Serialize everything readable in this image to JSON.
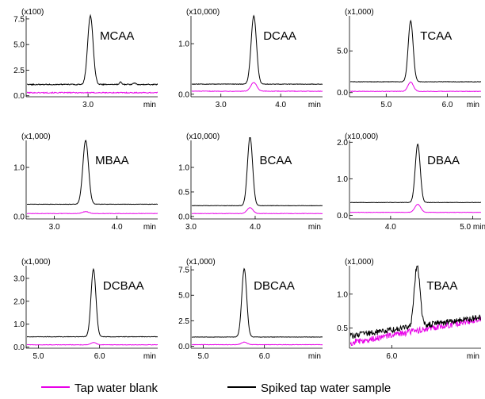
{
  "colors": {
    "blank": "#e800e8",
    "sample": "#000000"
  },
  "legend": [
    {
      "label": "Tap water blank",
      "color": "#e800e8"
    },
    {
      "label": "Spiked tap water sample",
      "color": "#000000"
    }
  ],
  "chart_data": [
    {
      "type": "line",
      "compound": "MCAA",
      "multiplier": "(x100)",
      "x_unit": "min",
      "xlim": [
        2.2,
        3.9
      ],
      "ylim": [
        -0.1,
        7.8
      ],
      "x_ticks": [
        {
          "v": 3.0,
          "label": "3.0"
        }
      ],
      "y_ticks": [
        {
          "v": 0.0,
          "label": "0.0"
        },
        {
          "v": 2.5,
          "label": "2.5"
        },
        {
          "v": 5.0,
          "label": "5.0"
        },
        {
          "v": 7.5,
          "label": "7.5"
        }
      ],
      "sample": {
        "base": 1.1,
        "peak_x": 3.03,
        "peak_h": 6.7,
        "width": 0.035,
        "noise": 0.05,
        "bumps": [
          [
            3.42,
            0.25
          ],
          [
            3.6,
            0.15
          ]
        ]
      },
      "blank": {
        "base": 0.3,
        "peak_x": 3.03,
        "peak_h": 0.0,
        "width": 0.035,
        "noise": 0.05
      }
    },
    {
      "type": "line",
      "compound": "DCAA",
      "multiplier": "(x10,000)",
      "x_unit": "min",
      "xlim": [
        2.5,
        4.7
      ],
      "ylim": [
        -0.05,
        1.55
      ],
      "x_ticks": [
        {
          "v": 3.0,
          "label": "3.0"
        },
        {
          "v": 4.0,
          "label": "4.0"
        }
      ],
      "y_ticks": [
        {
          "v": 0.0,
          "label": "0.0"
        },
        {
          "v": 1.0,
          "label": "1.0"
        }
      ],
      "sample": {
        "base": 0.2,
        "peak_x": 3.55,
        "peak_h": 1.35,
        "width": 0.045,
        "noise": 0.005
      },
      "blank": {
        "base": 0.06,
        "peak_x": 3.55,
        "peak_h": 0.17,
        "width": 0.05,
        "noise": 0.005
      }
    },
    {
      "type": "line",
      "compound": "TCAA",
      "multiplier": "(x1,000)",
      "x_unit": "min",
      "xlim": [
        4.4,
        6.55
      ],
      "ylim": [
        -0.5,
        9.2
      ],
      "x_ticks": [
        {
          "v": 5.0,
          "label": "5.0"
        },
        {
          "v": 6.0,
          "label": "6.0"
        }
      ],
      "y_ticks": [
        {
          "v": 0.0,
          "label": "0.0"
        },
        {
          "v": 5.0,
          "label": "5.0"
        }
      ],
      "sample": {
        "base": 1.3,
        "peak_x": 5.4,
        "peak_h": 7.3,
        "width": 0.04,
        "noise": 0.03
      },
      "blank": {
        "base": 0.15,
        "peak_x": 5.4,
        "peak_h": 1.1,
        "width": 0.045,
        "noise": 0.03
      }
    },
    {
      "type": "line",
      "compound": "MBAA",
      "multiplier": "(x1,000)",
      "x_unit": "min",
      "xlim": [
        2.55,
        4.65
      ],
      "ylim": [
        -0.05,
        1.55
      ],
      "x_ticks": [
        {
          "v": 3.0,
          "label": "3.0"
        },
        {
          "v": 4.0,
          "label": "4.0"
        }
      ],
      "y_ticks": [
        {
          "v": 0.0,
          "label": "0.0"
        },
        {
          "v": 1.0,
          "label": "1.0"
        }
      ],
      "sample": {
        "base": 0.25,
        "peak_x": 3.5,
        "peak_h": 1.3,
        "width": 0.045,
        "noise": 0.004
      },
      "blank": {
        "base": 0.06,
        "peak_x": 3.5,
        "peak_h": 0.04,
        "width": 0.05,
        "noise": 0.004
      }
    },
    {
      "type": "line",
      "compound": "BCAA",
      "multiplier": "(x10,000)",
      "x_unit": "min",
      "xlim": [
        3.0,
        5.05
      ],
      "ylim": [
        -0.05,
        1.55
      ],
      "x_ticks": [
        {
          "v": 3.0,
          "label": "3.0"
        },
        {
          "v": 4.0,
          "label": "4.0"
        }
      ],
      "y_ticks": [
        {
          "v": 0.0,
          "label": "0.0"
        },
        {
          "v": 0.5,
          "label": "0.5"
        },
        {
          "v": 1.0,
          "label": "1.0"
        }
      ],
      "sample": {
        "base": 0.22,
        "peak_x": 3.92,
        "peak_h": 1.4,
        "width": 0.04,
        "noise": 0.004
      },
      "blank": {
        "base": 0.06,
        "peak_x": 3.92,
        "peak_h": 0.12,
        "width": 0.045,
        "noise": 0.004
      }
    },
    {
      "type": "line",
      "compound": "DBAA",
      "multiplier": "(x10,000)",
      "x_unit": "min",
      "xlim": [
        3.5,
        5.1
      ],
      "ylim": [
        -0.1,
        2.05
      ],
      "x_ticks": [
        {
          "v": 4.0,
          "label": "4.0"
        },
        {
          "v": 5.0,
          "label": "5.0 min"
        }
      ],
      "y_ticks": [
        {
          "v": 0.0,
          "label": "0.0"
        },
        {
          "v": 1.0,
          "label": "1.0"
        },
        {
          "v": 2.0,
          "label": "2.0"
        }
      ],
      "sample": {
        "base": 0.35,
        "peak_x": 4.33,
        "peak_h": 1.6,
        "width": 0.03,
        "noise": 0.005
      },
      "blank": {
        "base": 0.08,
        "peak_x": 4.33,
        "peak_h": 0.22,
        "width": 0.035,
        "noise": 0.005
      }
    },
    {
      "type": "line",
      "compound": "DCBAA",
      "multiplier": "(x1,000)",
      "x_unit": "min",
      "xlim": [
        4.8,
        6.95
      ],
      "ylim": [
        -0.05,
        3.55
      ],
      "x_ticks": [
        {
          "v": 5.0,
          "label": "5.0"
        },
        {
          "v": 6.0,
          "label": "6.0"
        }
      ],
      "y_ticks": [
        {
          "v": 0.0,
          "label": "0.0"
        },
        {
          "v": 1.0,
          "label": "1.0"
        },
        {
          "v": 2.0,
          "label": "2.0"
        },
        {
          "v": 3.0,
          "label": "3.0"
        }
      ],
      "sample": {
        "base": 0.45,
        "peak_x": 5.9,
        "peak_h": 2.95,
        "width": 0.04,
        "noise": 0.01
      },
      "blank": {
        "base": 0.1,
        "peak_x": 5.9,
        "peak_h": 0.1,
        "width": 0.045,
        "noise": 0.01
      }
    },
    {
      "type": "line",
      "compound": "DBCAA",
      "multiplier": "(x1,000)",
      "x_unit": "min",
      "xlim": [
        4.8,
        6.95
      ],
      "ylim": [
        -0.2,
        7.9
      ],
      "x_ticks": [
        {
          "v": 5.0,
          "label": "5.0"
        },
        {
          "v": 6.0,
          "label": "6.0"
        }
      ],
      "y_ticks": [
        {
          "v": 0.0,
          "label": "0.0"
        },
        {
          "v": 2.5,
          "label": "2.5"
        },
        {
          "v": 5.0,
          "label": "5.0"
        },
        {
          "v": 7.5,
          "label": "7.5"
        }
      ],
      "sample": {
        "base": 0.9,
        "peak_x": 5.67,
        "peak_h": 6.7,
        "width": 0.04,
        "noise": 0.02
      },
      "blank": {
        "base": 0.15,
        "peak_x": 5.67,
        "peak_h": 0.25,
        "width": 0.045,
        "noise": 0.02
      }
    },
    {
      "type": "line",
      "compound": "TBAA",
      "multiplier": "(x1,000)",
      "x_unit": "min",
      "xlim": [
        5.55,
        6.95
      ],
      "ylim": [
        0.2,
        1.42
      ],
      "x_ticks": [
        {
          "v": 6.0,
          "label": "6.0"
        }
      ],
      "y_ticks": [
        {
          "v": 0.5,
          "label": "0.5"
        },
        {
          "v": 1.0,
          "label": "1.0"
        }
      ],
      "sample": {
        "base": 0.38,
        "slope": 0.2,
        "peak_x": 6.27,
        "peak_h": 0.9,
        "width": 0.03,
        "noise": 0.045
      },
      "blank": {
        "base": 0.28,
        "slope": 0.25,
        "peak_x": 6.27,
        "peak_h": 0.0,
        "width": 0.03,
        "noise": 0.045
      }
    }
  ]
}
